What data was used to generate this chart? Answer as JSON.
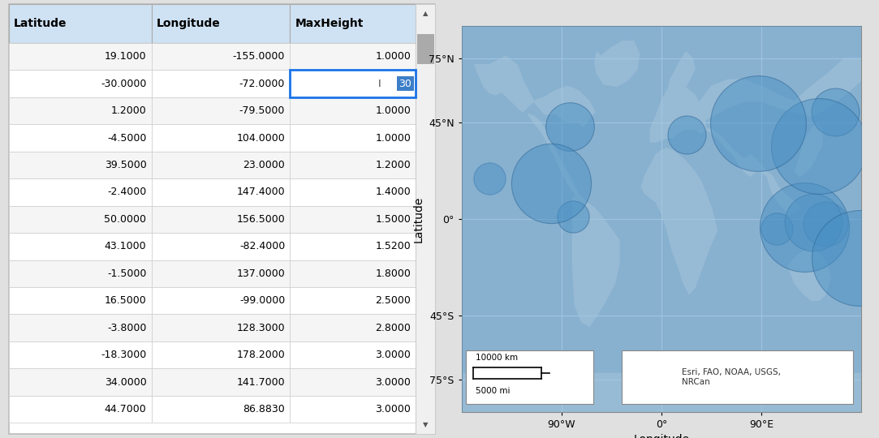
{
  "table_data": [
    [
      19.1,
      -155.0,
      1.0
    ],
    [
      -30.0,
      -72.0,
      30
    ],
    [
      1.2,
      -79.5,
      1.0
    ],
    [
      -4.5,
      104.0,
      1.0
    ],
    [
      39.5,
      23.0,
      1.2
    ],
    [
      -2.4,
      147.4,
      1.4
    ],
    [
      50.0,
      156.5,
      1.5
    ],
    [
      43.1,
      -82.4,
      1.52
    ],
    [
      -1.5,
      137.0,
      1.8
    ],
    [
      16.5,
      -99.0,
      2.5
    ],
    [
      -3.8,
      128.3,
      2.8
    ],
    [
      -18.3,
      178.2,
      3.0
    ],
    [
      34.0,
      141.7,
      3.0
    ],
    [
      44.7,
      86.883,
      3.0
    ]
  ],
  "col_headers": [
    "Latitude",
    "Longitude",
    "MaxHeight"
  ],
  "selected_row": 1,
  "selected_col": 2,
  "selected_value": "30",
  "header_bg": "#cfe2f3",
  "selected_cell_bg": "#ffffff",
  "selected_cell_border": "#1a73e8",
  "map_bg": "#c8d4de",
  "land_color": "#e8e8e8",
  "bubble_color": "#4a90c4",
  "bubble_alpha": 0.5,
  "bubble_edge_color": "#2a6090",
  "map_xlim": [
    -180,
    180
  ],
  "map_ylim": [
    -90,
    90
  ],
  "map_xticks": [
    -90,
    0,
    90
  ],
  "map_xtick_labels": [
    "90°W",
    "0°",
    "90°E"
  ],
  "map_yticks": [
    75,
    45,
    0,
    -45,
    -75
  ],
  "map_ytick_labels": [
    "75°N",
    "45°N",
    "0°",
    "45°S",
    "75°S"
  ],
  "map_xlabel": "Longitude",
  "map_ylabel": "Latitude",
  "scale_text1": "10000 km",
  "scale_text2": "5000 mi",
  "attribution": "Esri, FAO, NOAA, USGS,\nNRCan",
  "outer_bg": "#e0e0e0",
  "bubble_scale": 800
}
